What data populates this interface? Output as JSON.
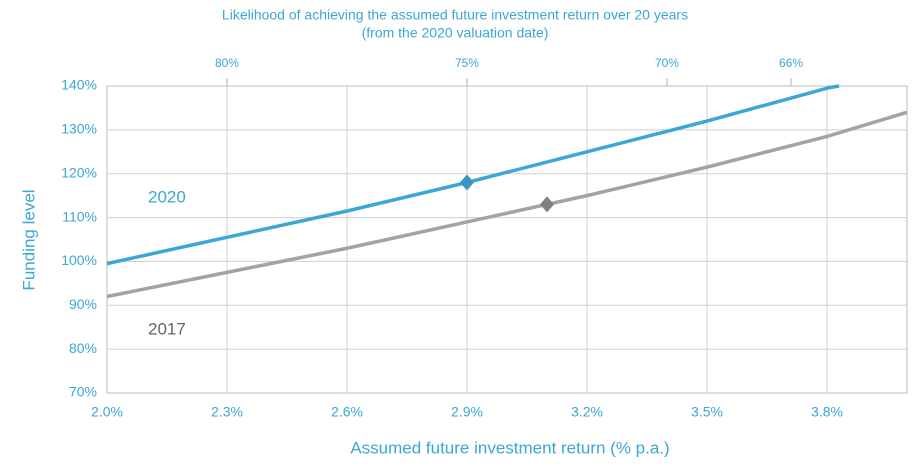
{
  "chart_data": {
    "type": "line",
    "title": "Likelihood of achieving the assumed future investment return over 20 years",
    "subtitle": "(from the 2020 valuation date)",
    "x_label": "Assumed future investment return (% p.a.)",
    "y_label": "Funding level",
    "xlim": [
      2.0,
      4.0
    ],
    "ylim": [
      70,
      140
    ],
    "xticks": [
      {
        "value": 2.0,
        "label": "2.0%"
      },
      {
        "value": 2.3,
        "label": "2.3%"
      },
      {
        "value": 2.6,
        "label": "2.6%"
      },
      {
        "value": 2.9,
        "label": "2.9%"
      },
      {
        "value": 3.2,
        "label": "3.2%"
      },
      {
        "value": 3.5,
        "label": "3.5%"
      },
      {
        "value": 3.8,
        "label": "3.8%"
      }
    ],
    "yticks": [
      {
        "value": 70,
        "label": "70%"
      },
      {
        "value": 80,
        "label": "80%"
      },
      {
        "value": 90,
        "label": "90%"
      },
      {
        "value": 100,
        "label": "100%"
      },
      {
        "value": 110,
        "label": "110%"
      },
      {
        "value": 120,
        "label": "120%"
      },
      {
        "value": 130,
        "label": "130%"
      },
      {
        "value": 140,
        "label": "140%"
      }
    ],
    "top_axis_ticks": [
      {
        "x": 2.3,
        "label": "80%"
      },
      {
        "x": 2.9,
        "label": "75%"
      },
      {
        "x": 3.4,
        "label": "70%"
      },
      {
        "x": 3.71,
        "label": "66%"
      }
    ],
    "grid": true,
    "series": [
      {
        "name": "2020",
        "color": "#3ba7d3",
        "marker_color": "#3a96c0",
        "x": [
          2.0,
          2.3,
          2.6,
          2.9,
          3.2,
          3.5,
          3.8,
          3.83
        ],
        "values": [
          99.5,
          105.5,
          111.5,
          118,
          125,
          132,
          139.5,
          140
        ],
        "marker": {
          "x": 2.9,
          "y": 118
        }
      },
      {
        "name": "2017",
        "color": "#a3a3a3",
        "marker_color": "#7f7f7f",
        "x": [
          2.0,
          2.3,
          2.6,
          2.9,
          3.2,
          3.5,
          3.8,
          4.0
        ],
        "values": [
          92,
          97.5,
          103,
          109,
          115,
          121.5,
          128.5,
          134
        ],
        "marker": {
          "x": 3.1,
          "y": 113
        }
      }
    ]
  }
}
